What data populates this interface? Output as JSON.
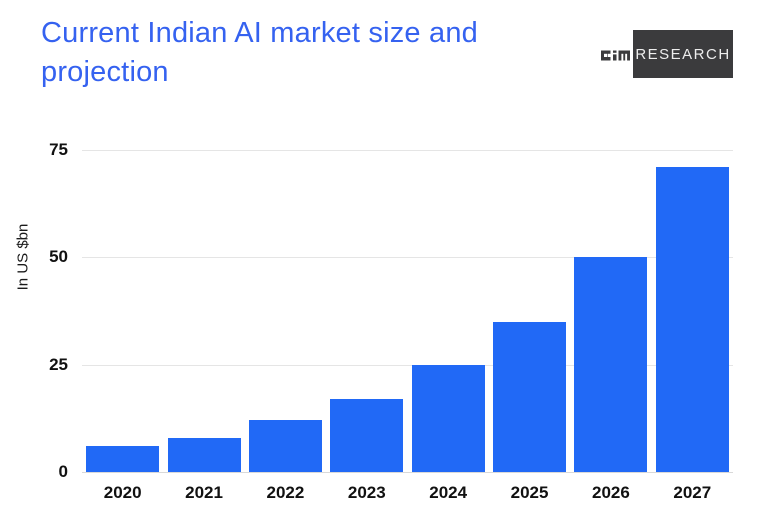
{
  "header": {
    "title": "Current Indian AI market size and projection",
    "logo": {
      "brand": "aim",
      "text": "RESEARCH",
      "box_color": "#3B3B3D",
      "text_color": "#EDEDED"
    }
  },
  "chart_data": {
    "type": "bar",
    "title": "Current Indian AI market size and projection",
    "categories": [
      "2020",
      "2021",
      "2022",
      "2023",
      "2024",
      "2025",
      "2026",
      "2027"
    ],
    "values": [
      6,
      8,
      12,
      17,
      25,
      35,
      50,
      71
    ],
    "xlabel": "",
    "ylabel": "In US $bn",
    "yticks": [
      0,
      25,
      50,
      75
    ],
    "ylim": [
      0,
      75
    ],
    "grid": true,
    "legend": false,
    "bar_color": "#2169F6",
    "gridline_color": "#E5E5E5",
    "title_color": "#3562F0"
  }
}
